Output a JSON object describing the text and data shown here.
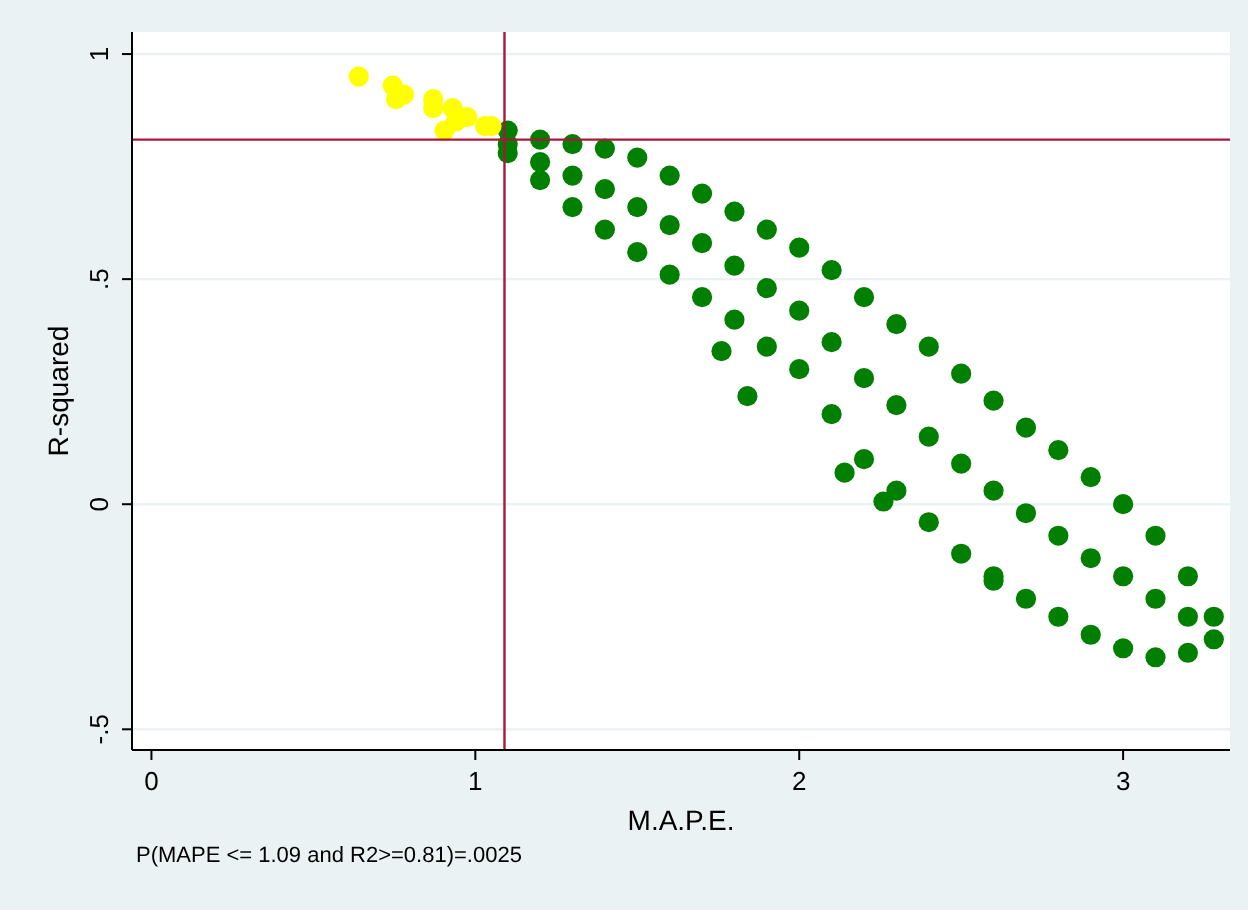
{
  "chart_data": {
    "type": "scatter",
    "xlabel": "M.A.P.E.",
    "ylabel": "R-squared",
    "annotations": [
      "P(MAPE <= 1.09 and R2>=0.81)=.0025"
    ],
    "xlim": [
      -0.06,
      3.33
    ],
    "ylim": [
      -0.546,
      1.049
    ],
    "xticks": [
      0,
      1,
      2,
      3
    ],
    "yticks": [
      {
        "value": -0.5,
        "label": "-.5"
      },
      {
        "value": 0,
        "label": "0"
      },
      {
        "value": 0.5,
        "label": ".5"
      },
      {
        "value": 1,
        "label": "1"
      }
    ],
    "grid": "y",
    "marker": "circle",
    "ref_lines": [
      {
        "axis": "x",
        "value": 1.09,
        "label": null,
        "color": "#a8183c"
      },
      {
        "axis": "y",
        "value": 0.81,
        "label": null,
        "color": "#a8183c"
      }
    ],
    "series": [
      {
        "color": "#007f00",
        "x": [
          1.1,
          1.1,
          1.1,
          1.2,
          1.2,
          1.2,
          1.3,
          1.3,
          1.3,
          1.4,
          1.4,
          1.4,
          1.5,
          1.5,
          1.5,
          1.6,
          1.6,
          1.6,
          1.7,
          1.7,
          1.7,
          1.8,
          1.8,
          1.8,
          1.9,
          1.9,
          1.9,
          2.0,
          2.0,
          2.0,
          2.1,
          2.1,
          2.1,
          2.2,
          2.2,
          2.2,
          2.3,
          2.3,
          2.3,
          2.4,
          2.4,
          2.4,
          2.5,
          2.5,
          2.5,
          2.6,
          2.6,
          2.6,
          2.7,
          2.7,
          2.7,
          2.8,
          2.8,
          2.8,
          2.9,
          2.9,
          2.9,
          3.0,
          3.0,
          3.0,
          3.1,
          3.1,
          3.1,
          3.2,
          3.2,
          3.2,
          3.28,
          3.28,
          1.84,
          2.14,
          2.26,
          1.76,
          2.6
        ],
        "values": [
          0.83,
          0.8,
          0.78,
          0.81,
          0.76,
          0.72,
          0.8,
          0.73,
          0.66,
          0.79,
          0.7,
          0.61,
          0.77,
          0.66,
          0.56,
          0.73,
          0.62,
          0.51,
          0.69,
          0.58,
          0.46,
          0.65,
          0.53,
          0.41,
          0.61,
          0.48,
          0.35,
          0.57,
          0.43,
          0.3,
          0.52,
          0.36,
          0.2,
          0.46,
          0.28,
          0.1,
          0.4,
          0.22,
          0.03,
          0.35,
          0.15,
          -0.04,
          0.29,
          0.09,
          -0.11,
          0.23,
          0.03,
          -0.16,
          0.17,
          -0.02,
          -0.21,
          0.12,
          -0.07,
          -0.25,
          0.06,
          -0.12,
          -0.29,
          0.0,
          -0.16,
          -0.32,
          -0.07,
          -0.21,
          -0.34,
          -0.16,
          -0.25,
          -0.33,
          -0.25,
          -0.3,
          0.24,
          0.07,
          0.006,
          0.34,
          -0.17
        ]
      },
      {
        "color": "#ffff00",
        "x": [
          0.64,
          0.745,
          0.755,
          0.78,
          0.87,
          0.87,
          0.93,
          0.905,
          0.94,
          0.975,
          1.03,
          1.05
        ],
        "values": [
          0.95,
          0.93,
          0.9,
          0.91,
          0.9,
          0.88,
          0.88,
          0.83,
          0.85,
          0.86,
          0.84,
          0.84
        ]
      }
    ]
  }
}
